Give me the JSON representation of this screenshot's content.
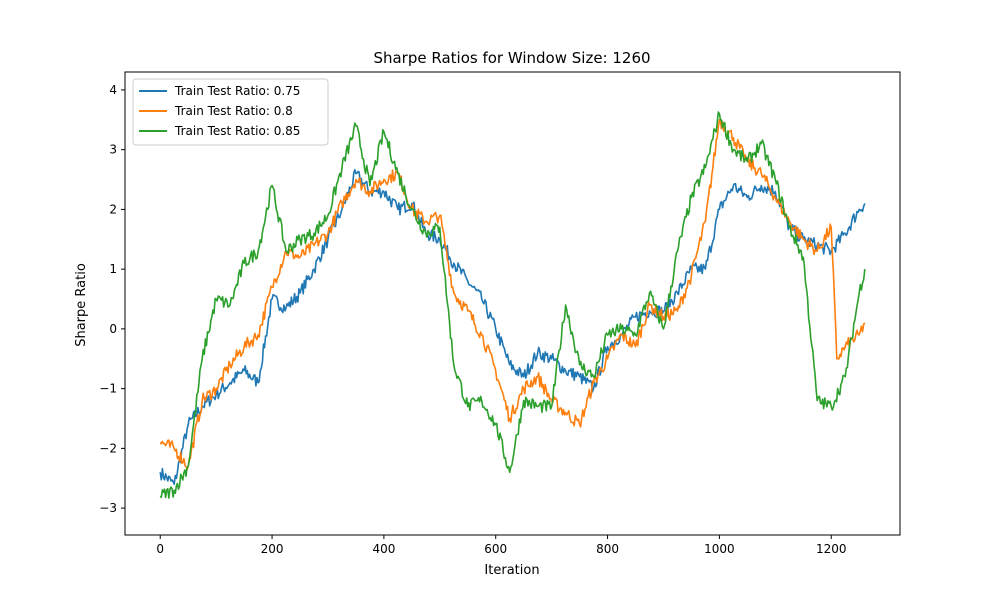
{
  "chart_data": {
    "type": "line",
    "title": "Sharpe Ratios for Window Size: 1260",
    "xlabel": "Iteration",
    "ylabel": "Sharpe Ratio",
    "xlim": [
      -63,
      1323
    ],
    "ylim": [
      -3.45,
      4.3
    ],
    "xticks": [
      0,
      200,
      400,
      600,
      800,
      1000,
      1200
    ],
    "yticks": [
      -3,
      -2,
      -1,
      0,
      1,
      2,
      3,
      4
    ],
    "grid": false,
    "legend_position": "top-left",
    "series": [
      {
        "name": "Train Test Ratio: 0.75",
        "color": "#1f77b4",
        "x": [
          0,
          25,
          50,
          75,
          100,
          125,
          150,
          175,
          200,
          225,
          250,
          275,
          300,
          325,
          350,
          375,
          400,
          425,
          450,
          475,
          500,
          525,
          550,
          575,
          600,
          625,
          650,
          675,
          700,
          725,
          750,
          775,
          800,
          825,
          850,
          875,
          900,
          925,
          950,
          975,
          1000,
          1025,
          1050,
          1075,
          1100,
          1125,
          1150,
          1175,
          1200,
          1225,
          1250,
          1260
        ],
        "y": [
          -2.4,
          -2.6,
          -1.6,
          -1.3,
          -1.1,
          -0.9,
          -0.7,
          -0.9,
          0.5,
          0.35,
          0.6,
          1.0,
          1.5,
          2.0,
          2.6,
          2.3,
          2.3,
          2.0,
          2.1,
          1.6,
          1.5,
          1.1,
          0.8,
          0.5,
          0.0,
          -0.6,
          -0.8,
          -0.4,
          -0.5,
          -0.7,
          -0.8,
          -1.0,
          -0.3,
          -0.1,
          0.2,
          0.3,
          0.3,
          0.6,
          1.0,
          1.0,
          2.0,
          2.4,
          2.2,
          2.4,
          2.3,
          1.7,
          1.5,
          1.4,
          1.3,
          1.6,
          2.0,
          2.1
        ]
      },
      {
        "name": "Train Test Ratio: 0.8",
        "color": "#ff7f0e",
        "x": [
          0,
          25,
          50,
          75,
          100,
          125,
          150,
          175,
          200,
          225,
          250,
          275,
          300,
          325,
          350,
          375,
          400,
          425,
          450,
          475,
          500,
          525,
          550,
          575,
          600,
          625,
          650,
          675,
          700,
          725,
          750,
          775,
          800,
          825,
          850,
          875,
          900,
          925,
          950,
          975,
          1000,
          1025,
          1050,
          1075,
          1100,
          1125,
          1150,
          1175,
          1200,
          1210,
          1225,
          1250,
          1260
        ],
        "y": [
          -1.9,
          -2.0,
          -2.3,
          -1.2,
          -1.0,
          -0.6,
          -0.3,
          -0.1,
          0.7,
          1.3,
          1.2,
          1.4,
          1.6,
          2.1,
          2.5,
          2.3,
          2.5,
          2.6,
          2.0,
          1.8,
          1.9,
          0.6,
          0.3,
          -0.1,
          -0.7,
          -1.5,
          -1.0,
          -0.8,
          -1.2,
          -1.4,
          -1.6,
          -0.9,
          -0.5,
          -0.1,
          -0.3,
          0.4,
          0.2,
          0.3,
          0.9,
          1.8,
          3.5,
          3.2,
          2.8,
          2.6,
          2.2,
          1.8,
          1.5,
          1.3,
          1.7,
          -0.5,
          -0.3,
          -0.1,
          0.1
        ]
      },
      {
        "name": "Train Test Ratio: 0.85",
        "color": "#2ca02c",
        "x": [
          0,
          25,
          50,
          75,
          100,
          125,
          150,
          175,
          200,
          225,
          250,
          275,
          300,
          325,
          350,
          375,
          400,
          425,
          450,
          475,
          500,
          525,
          550,
          575,
          600,
          625,
          650,
          675,
          700,
          725,
          750,
          775,
          800,
          825,
          850,
          875,
          900,
          925,
          950,
          975,
          1000,
          1025,
          1050,
          1075,
          1100,
          1125,
          1150,
          1175,
          1200,
          1225,
          1250,
          1260
        ],
        "y": [
          -2.8,
          -2.7,
          -2.3,
          -0.5,
          0.5,
          0.4,
          1.1,
          1.3,
          2.4,
          1.3,
          1.5,
          1.6,
          1.9,
          2.7,
          3.4,
          2.4,
          3.3,
          2.6,
          2.0,
          1.6,
          1.7,
          -0.6,
          -1.3,
          -1.2,
          -1.6,
          -2.4,
          -1.2,
          -1.3,
          -1.3,
          0.4,
          -0.6,
          -0.8,
          -0.1,
          0.0,
          -0.1,
          0.6,
          0.0,
          1.3,
          2.2,
          2.7,
          3.6,
          3.0,
          2.8,
          3.1,
          2.5,
          1.7,
          1.2,
          -1.2,
          -1.3,
          -0.8,
          0.6,
          1.0
        ]
      }
    ]
  }
}
